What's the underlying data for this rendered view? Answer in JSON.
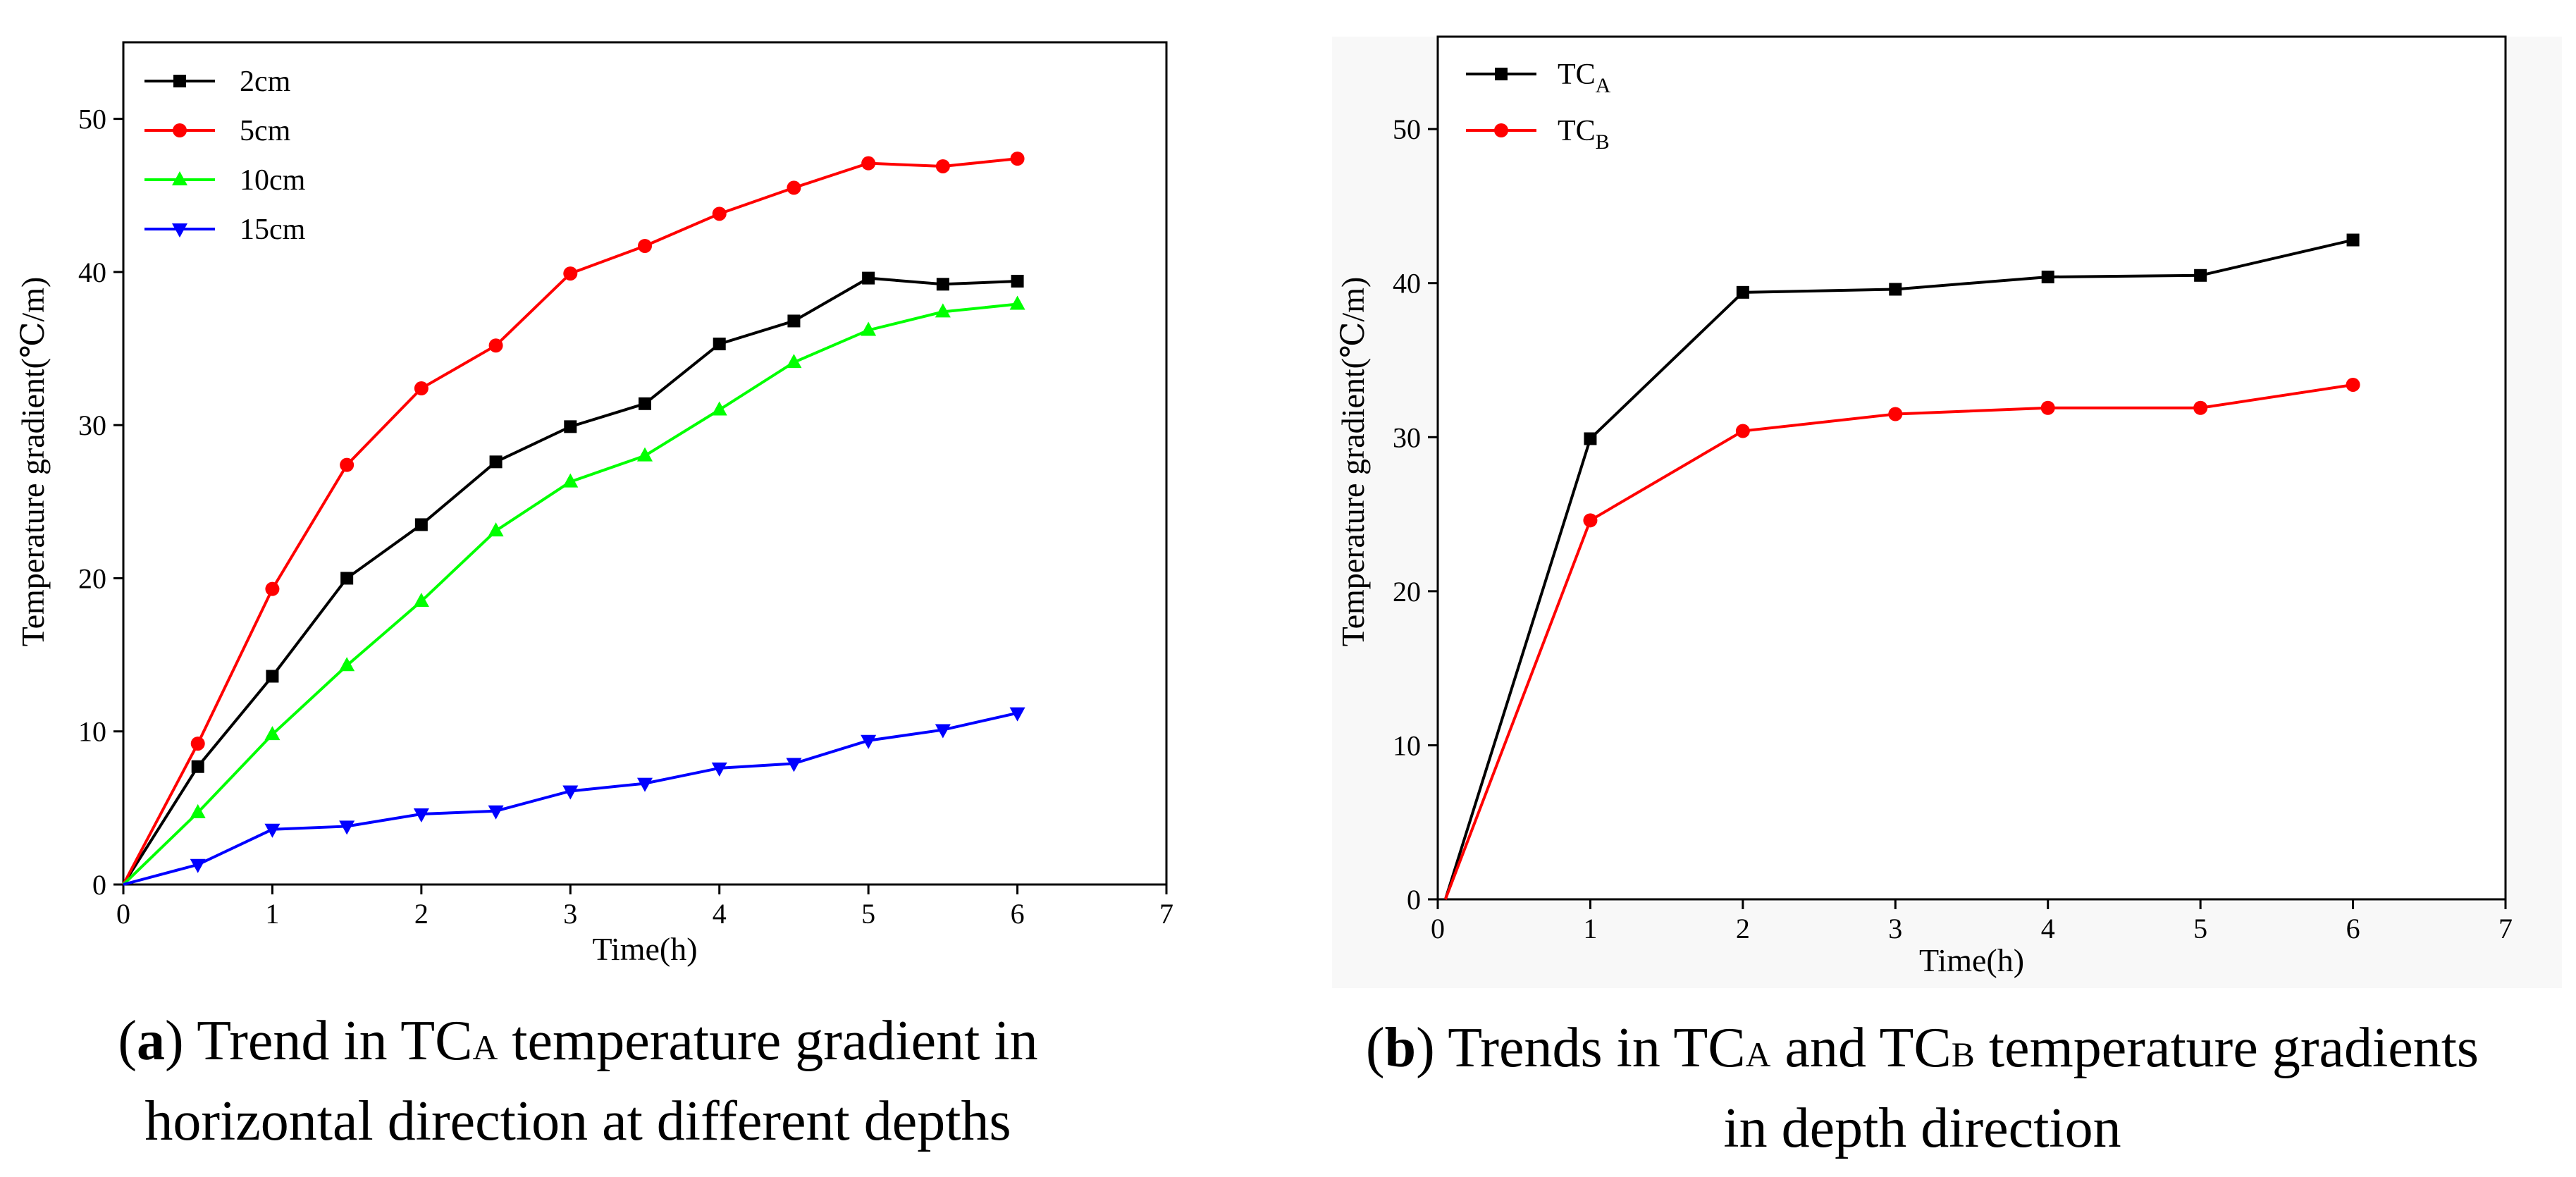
{
  "charts": [
    {
      "id": "a",
      "chart_data": {
        "type": "line",
        "xlabel": "Time(h)",
        "ylabel": "Temperature gradient(℃/m)",
        "xlim": [
          0,
          7
        ],
        "ylim": [
          0,
          55
        ],
        "xticks": [
          0,
          1,
          2,
          3,
          4,
          5,
          6,
          7
        ],
        "yticks": [
          0,
          10,
          20,
          30,
          40,
          50
        ],
        "x": [
          0,
          0.5,
          1,
          1.5,
          2,
          2.5,
          3,
          3.5,
          4,
          4.5,
          5,
          5.5,
          6
        ],
        "series": [
          {
            "name": "2cm",
            "color": "#000000",
            "marker": "square",
            "values": [
              0,
              7.7,
              13.6,
              20.0,
              23.5,
              27.6,
              29.9,
              31.4,
              35.3,
              36.8,
              39.6,
              39.2,
              39.4
            ]
          },
          {
            "name": "5cm",
            "color": "#ff0000",
            "marker": "circle",
            "values": [
              0,
              9.2,
              19.3,
              27.4,
              32.4,
              35.2,
              39.9,
              41.7,
              43.8,
              45.5,
              47.1,
              46.9,
              47.4
            ]
          },
          {
            "name": "10cm",
            "color": "#00ff00",
            "marker": "triangle-up",
            "values": [
              0,
              4.7,
              9.8,
              14.3,
              18.5,
              23.1,
              26.3,
              28.0,
              31.0,
              34.1,
              36.2,
              37.4,
              37.9
            ]
          },
          {
            "name": "15cm",
            "color": "#0000ff",
            "marker": "triangle-down",
            "values": [
              0,
              1.3,
              3.6,
              3.8,
              4.6,
              4.8,
              6.1,
              6.6,
              7.6,
              7.9,
              9.4,
              10.1,
              11.2
            ]
          }
        ]
      },
      "caption": {
        "letter": "a",
        "text1": " Trend in TC",
        "sub": "A",
        "text2": " temperature gradient in",
        "line2": "horizontal direction at different depths"
      }
    },
    {
      "id": "b",
      "chart_data": {
        "type": "line",
        "xlabel": "Time(h)",
        "ylabel": "Temperature gradient(℃/m)",
        "xlim": [
          0,
          7
        ],
        "ylim": [
          0,
          56
        ],
        "xticks": [
          0,
          1,
          2,
          3,
          4,
          5,
          6,
          7
        ],
        "yticks": [
          0,
          10,
          20,
          30,
          40,
          50
        ],
        "x": [
          0.05,
          1,
          2,
          3,
          4,
          5,
          6
        ],
        "series": [
          {
            "name": "TC",
            "sub": "A",
            "color": "#000000",
            "marker": "square",
            "values": [
              0,
              29.9,
              39.4,
              39.6,
              40.4,
              40.5,
              42.8
            ]
          },
          {
            "name": "TC",
            "sub": "B",
            "color": "#ff0000",
            "marker": "circle",
            "values": [
              0,
              24.6,
              30.4,
              31.5,
              31.9,
              31.9,
              33.4
            ]
          }
        ]
      },
      "caption": {
        "letter": "b",
        "text1": " Trends in TC",
        "sub": "A",
        "text2": " and TC",
        "sub2": "B",
        "text3": " temperature gradients",
        "line2": "in depth direction"
      }
    }
  ]
}
